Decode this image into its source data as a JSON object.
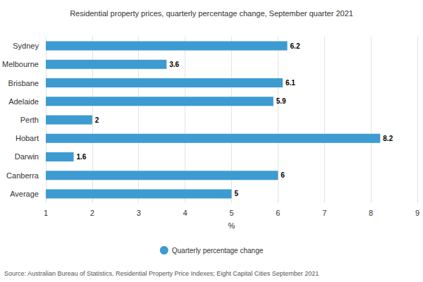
{
  "chart_data": {
    "type": "bar",
    "title": "Residential property prices, quarterly percentage change, September quarter 2021",
    "orientation": "horizontal",
    "categories": [
      "Sydney",
      "Melbourne",
      "Brisbane",
      "Adelaide",
      "Perth",
      "Hobart",
      "Darwin",
      "Canberra",
      "Average"
    ],
    "series": [
      {
        "name": "Quarterly percentage change",
        "color": "#3d9bd1",
        "values": [
          6.2,
          3.6,
          6.1,
          5.9,
          2,
          8.2,
          1.6,
          6,
          5
        ]
      }
    ],
    "xlabel": "%",
    "xlim": [
      1,
      9
    ],
    "xticks": [
      1,
      2,
      3,
      4,
      5,
      6,
      7,
      8,
      9
    ],
    "grid": true,
    "legend": "bottom",
    "data_labels": true,
    "annotations": [
      "Source: Australian Bureau of Statistics, Residential Property Price Indexes; Eight Capital Cities September 2021"
    ]
  }
}
